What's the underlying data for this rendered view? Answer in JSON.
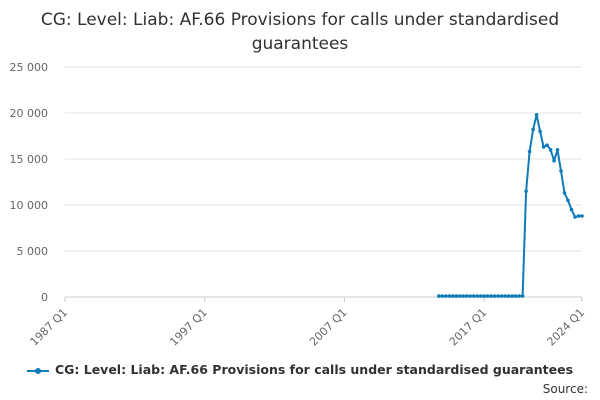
{
  "title": "CG: Level: Liab: AF.66 Provisions for calls under standardised guarantees",
  "source_label": "Source:",
  "colors": {
    "series": "#0f7cb9",
    "grid": "#e6e6e6",
    "axis": "#cccccc",
    "text": "#323132",
    "tick": "#666666"
  },
  "chart_data": {
    "type": "line",
    "title": "CG: Level: Liab: AF.66 Provisions for calls under standardised guarantees",
    "xlabel": "",
    "ylabel": "",
    "ylim": [
      0,
      25000
    ],
    "y_ticks": [
      0,
      5000,
      10000,
      15000,
      20000,
      25000
    ],
    "y_tick_labels": [
      "0",
      "5 000",
      "10 000",
      "15 000",
      "20 000",
      "25 000"
    ],
    "x_range": [
      "1987 Q1",
      "2024 Q1"
    ],
    "x_tick_labels": [
      "1987 Q1",
      "1997 Q1",
      "2007 Q1",
      "2017 Q1",
      "2024 Q1"
    ],
    "grid": "horizontal",
    "legend_position": "bottom",
    "series": [
      {
        "name": "CG: Level: Liab: AF.66 Provisions for calls under standardised guarantees",
        "x": [
          "2013 Q4",
          "2014 Q1",
          "2014 Q2",
          "2014 Q3",
          "2014 Q4",
          "2015 Q1",
          "2015 Q2",
          "2015 Q3",
          "2015 Q4",
          "2016 Q1",
          "2016 Q2",
          "2016 Q3",
          "2016 Q4",
          "2017 Q1",
          "2017 Q2",
          "2017 Q3",
          "2017 Q4",
          "2018 Q1",
          "2018 Q2",
          "2018 Q3",
          "2018 Q4",
          "2019 Q1",
          "2019 Q2",
          "2019 Q3",
          "2019 Q4",
          "2020 Q1",
          "2020 Q2",
          "2020 Q3",
          "2020 Q4",
          "2021 Q1",
          "2021 Q2",
          "2021 Q3",
          "2021 Q4",
          "2022 Q1",
          "2022 Q2",
          "2022 Q3",
          "2022 Q4",
          "2023 Q1",
          "2023 Q2",
          "2023 Q3",
          "2023 Q4",
          "2024 Q1"
        ],
        "values": [
          100,
          100,
          100,
          100,
          100,
          100,
          100,
          100,
          100,
          100,
          100,
          100,
          100,
          100,
          100,
          100,
          100,
          100,
          100,
          100,
          100,
          100,
          100,
          100,
          100,
          11500,
          15800,
          18200,
          19800,
          18000,
          16300,
          16500,
          16000,
          14800,
          16000,
          13700,
          11300,
          10500,
          9500,
          8700,
          8800,
          8800
        ]
      }
    ]
  }
}
